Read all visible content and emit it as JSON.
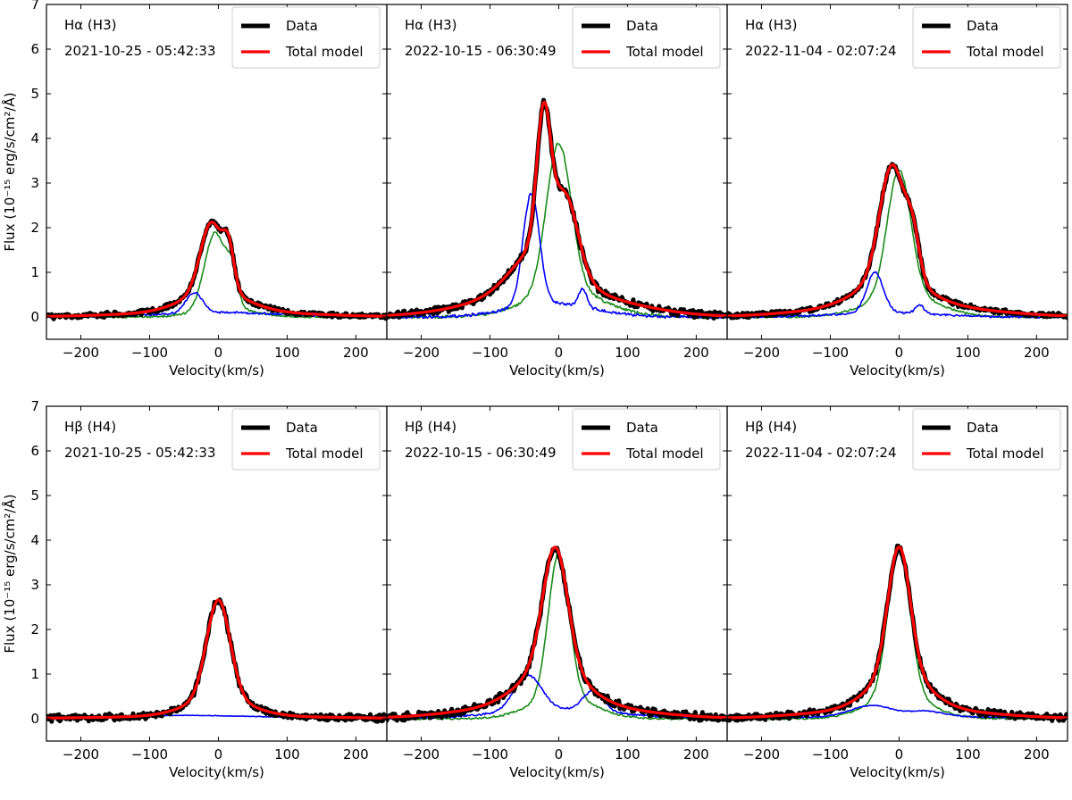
{
  "figure": {
    "ylabel": "Flux (10⁻¹⁵ erg/s/cm²/Å)",
    "xlabel": "Velocity(km/s)"
  },
  "colors": {
    "data": "#000000",
    "model": "#ff0000",
    "blue": "#0000ff",
    "green": "#1a8a1a"
  },
  "chart_data": [
    {
      "type": "line",
      "line_label": "Hα (H3)",
      "date": "2021-10-25 - 05:42:33",
      "xlim": [
        -250,
        245
      ],
      "ylim": [
        -0.5,
        7
      ],
      "xticks": [
        -200,
        -100,
        0,
        100,
        200
      ],
      "yticks": [
        0,
        1,
        2,
        3,
        4,
        5,
        6,
        7
      ],
      "legend": [
        "Data",
        "Total model"
      ],
      "series": [
        {
          "name": "Data",
          "role": "data",
          "peaks": [
            {
              "amp": 1.55,
              "mu": -10,
              "sig": 16
            },
            {
              "amp": 0.85,
              "mu": 15,
              "sig": 8
            },
            {
              "amp": 0.45,
              "mu": -5,
              "sig": 45
            },
            {
              "amp": 0.12,
              "mu": 0,
              "sig": 120
            }
          ],
          "noise": 0.05
        },
        {
          "name": "Total model",
          "role": "model",
          "peaks": [
            {
              "amp": 1.55,
              "mu": -10,
              "sig": 16
            },
            {
              "amp": 0.85,
              "mu": 15,
              "sig": 8
            },
            {
              "amp": 0.45,
              "mu": -5,
              "sig": 45
            },
            {
              "amp": 0.12,
              "mu": 0,
              "sig": 120
            }
          ]
        },
        {
          "name": "blue component",
          "role": "blue",
          "peaks": [
            {
              "amp": 0.45,
              "mu": -35,
              "sig": 12
            },
            {
              "amp": 0.1,
              "mu": 0,
              "sig": 90
            }
          ],
          "noise": 0.02
        },
        {
          "name": "green component",
          "role": "green",
          "peaks": [
            {
              "amp": 1.7,
              "mu": -5,
              "sig": 15
            },
            {
              "amp": 0.7,
              "mu": 20,
              "sig": 8
            },
            {
              "amp": 0.2,
              "mu": 10,
              "sig": 40
            }
          ],
          "noise": 0.02
        }
      ]
    },
    {
      "type": "line",
      "line_label": "Hα (H3)",
      "date": "2022-10-15 - 06:30:49",
      "xlim": [
        -250,
        245
      ],
      "ylim": [
        -0.5,
        7
      ],
      "xticks": [
        -200,
        -100,
        0,
        100,
        200
      ],
      "yticks": [
        0,
        1,
        2,
        3,
        4,
        5,
        6,
        7
      ],
      "legend": [
        "Data",
        "Total model"
      ],
      "series": [
        {
          "name": "Data",
          "role": "data",
          "peaks": [
            {
              "amp": 2.9,
              "mu": -22,
              "sig": 10
            },
            {
              "amp": 1.5,
              "mu": 10,
              "sig": 18
            },
            {
              "amp": 1.0,
              "mu": -25,
              "sig": 40
            },
            {
              "amp": 0.6,
              "mu": -10,
              "sig": 100
            }
          ],
          "noise": 0.07
        },
        {
          "name": "Total model",
          "role": "model",
          "peaks": [
            {
              "amp": 2.9,
              "mu": -22,
              "sig": 10
            },
            {
              "amp": 1.5,
              "mu": 10,
              "sig": 18
            },
            {
              "amp": 1.0,
              "mu": -25,
              "sig": 40
            },
            {
              "amp": 0.6,
              "mu": -10,
              "sig": 100
            }
          ]
        },
        {
          "name": "blue component",
          "role": "blue",
          "peaks": [
            {
              "amp": 2.5,
              "mu": -40,
              "sig": 12
            },
            {
              "amp": 0.4,
              "mu": 35,
              "sig": 6
            },
            {
              "amp": 0.3,
              "mu": -10,
              "sig": 60
            }
          ],
          "noise": 0.03
        },
        {
          "name": "green component",
          "role": "green",
          "peaks": [
            {
              "amp": 3.3,
              "mu": 0,
              "sig": 18
            },
            {
              "amp": 0.6,
              "mu": 10,
              "sig": 55
            }
          ],
          "noise": 0.03
        }
      ]
    },
    {
      "type": "line",
      "line_label": "Hα (H3)",
      "date": "2022-11-04 - 02:07:24",
      "xlim": [
        -250,
        245
      ],
      "ylim": [
        -0.5,
        7
      ],
      "xticks": [
        -200,
        -100,
        0,
        100,
        200
      ],
      "yticks": [
        0,
        1,
        2,
        3,
        4,
        5,
        6,
        7
      ],
      "legend": [
        "Data",
        "Total model"
      ],
      "series": [
        {
          "name": "Data",
          "role": "data",
          "peaks": [
            {
              "amp": 2.5,
              "mu": -10,
              "sig": 18
            },
            {
              "amp": 0.9,
              "mu": 20,
              "sig": 10
            },
            {
              "amp": 0.6,
              "mu": -10,
              "sig": 45
            },
            {
              "amp": 0.3,
              "mu": 0,
              "sig": 110
            }
          ],
          "noise": 0.05
        },
        {
          "name": "Total model",
          "role": "model",
          "peaks": [
            {
              "amp": 2.5,
              "mu": -10,
              "sig": 18
            },
            {
              "amp": 0.9,
              "mu": 20,
              "sig": 10
            },
            {
              "amp": 0.6,
              "mu": -10,
              "sig": 45
            },
            {
              "amp": 0.3,
              "mu": 0,
              "sig": 110
            }
          ]
        },
        {
          "name": "blue component",
          "role": "blue",
          "peaks": [
            {
              "amp": 0.9,
              "mu": -35,
              "sig": 12
            },
            {
              "amp": 0.2,
              "mu": 30,
              "sig": 6
            },
            {
              "amp": 0.1,
              "mu": -20,
              "sig": 70
            }
          ],
          "noise": 0.02
        },
        {
          "name": "green component",
          "role": "green",
          "peaks": [
            {
              "amp": 2.8,
              "mu": 0,
              "sig": 17
            },
            {
              "amp": 0.5,
              "mu": 5,
              "sig": 50
            }
          ],
          "noise": 0.02
        }
      ]
    },
    {
      "type": "line",
      "line_label": "Hβ (H4)",
      "date": "2021-10-25 - 05:42:33",
      "xlim": [
        -250,
        245
      ],
      "ylim": [
        -0.5,
        7
      ],
      "xticks": [
        -200,
        -100,
        0,
        100,
        200
      ],
      "yticks": [
        0,
        1,
        2,
        3,
        4,
        5,
        6,
        7
      ],
      "legend": [
        "Data",
        "Total model"
      ],
      "series": [
        {
          "name": "Data",
          "role": "data",
          "peaks": [
            {
              "amp": 2.2,
              "mu": 0,
              "sig": 17
            },
            {
              "amp": 0.4,
              "mu": 0,
              "sig": 45
            },
            {
              "amp": 0.06,
              "mu": 0,
              "sig": 150
            }
          ],
          "noise": 0.07
        },
        {
          "name": "Total model",
          "role": "model",
          "peaks": [
            {
              "amp": 2.2,
              "mu": 0,
              "sig": 17
            },
            {
              "amp": 0.4,
              "mu": 0,
              "sig": 45
            },
            {
              "amp": 0.06,
              "mu": 0,
              "sig": 150
            }
          ]
        },
        {
          "name": "blue component",
          "role": "blue",
          "peaks": [
            {
              "amp": 0.07,
              "mu": -60,
              "sig": 60
            },
            {
              "amp": 0.04,
              "mu": 60,
              "sig": 60
            }
          ],
          "noise": 0.005
        }
      ]
    },
    {
      "type": "line",
      "line_label": "Hβ (H4)",
      "date": "2022-10-15 - 06:30:49",
      "xlim": [
        -250,
        245
      ],
      "ylim": [
        -0.5,
        7
      ],
      "xticks": [
        -200,
        -100,
        0,
        100,
        200
      ],
      "yticks": [
        0,
        1,
        2,
        3,
        4,
        5,
        6,
        7
      ],
      "legend": [
        "Data",
        "Total model"
      ],
      "series": [
        {
          "name": "Data",
          "role": "data",
          "peaks": [
            {
              "amp": 2.7,
              "mu": -5,
              "sig": 18
            },
            {
              "amp": 0.8,
              "mu": -10,
              "sig": 45
            },
            {
              "amp": 0.35,
              "mu": -10,
              "sig": 110
            }
          ],
          "noise": 0.08
        },
        {
          "name": "Total model",
          "role": "model",
          "peaks": [
            {
              "amp": 2.7,
              "mu": -5,
              "sig": 18
            },
            {
              "amp": 0.8,
              "mu": -10,
              "sig": 45
            },
            {
              "amp": 0.35,
              "mu": -10,
              "sig": 110
            }
          ]
        },
        {
          "name": "blue component",
          "role": "blue",
          "peaks": [
            {
              "amp": 0.8,
              "mu": -45,
              "sig": 20
            },
            {
              "amp": 0.45,
              "mu": 50,
              "sig": 15
            },
            {
              "amp": 0.2,
              "mu": 0,
              "sig": 90
            }
          ],
          "noise": 0.02
        },
        {
          "name": "green component",
          "role": "green",
          "peaks": [
            {
              "amp": 3.2,
              "mu": 0,
              "sig": 15
            },
            {
              "amp": 0.5,
              "mu": 5,
              "sig": 45
            }
          ],
          "noise": 0.02
        }
      ]
    },
    {
      "type": "line",
      "line_label": "Hβ (H4)",
      "date": "2022-11-04 - 02:07:24",
      "xlim": [
        -250,
        245
      ],
      "ylim": [
        -0.5,
        7
      ],
      "xticks": [
        -200,
        -100,
        0,
        100,
        200
      ],
      "yticks": [
        0,
        1,
        2,
        3,
        4,
        5,
        6,
        7
      ],
      "legend": [
        "Data",
        "Total model"
      ],
      "series": [
        {
          "name": "Data",
          "role": "data",
          "peaks": [
            {
              "amp": 2.8,
              "mu": 0,
              "sig": 16
            },
            {
              "amp": 0.8,
              "mu": 0,
              "sig": 40
            },
            {
              "amp": 0.25,
              "mu": 0,
              "sig": 110
            }
          ],
          "noise": 0.07
        },
        {
          "name": "Total model",
          "role": "model",
          "peaks": [
            {
              "amp": 2.8,
              "mu": 0,
              "sig": 16
            },
            {
              "amp": 0.8,
              "mu": 0,
              "sig": 40
            },
            {
              "amp": 0.25,
              "mu": 0,
              "sig": 110
            }
          ]
        },
        {
          "name": "blue component",
          "role": "blue",
          "peaks": [
            {
              "amp": 0.25,
              "mu": -40,
              "sig": 30
            },
            {
              "amp": 0.12,
              "mu": 40,
              "sig": 25
            },
            {
              "amp": 0.05,
              "mu": 0,
              "sig": 150
            }
          ],
          "noise": 0.01
        },
        {
          "name": "green component",
          "role": "green",
          "peaks": [
            {
              "amp": 3.3,
              "mu": 0,
              "sig": 16
            },
            {
              "amp": 0.5,
              "mu": 0,
              "sig": 45
            }
          ],
          "noise": 0.02
        }
      ]
    }
  ]
}
